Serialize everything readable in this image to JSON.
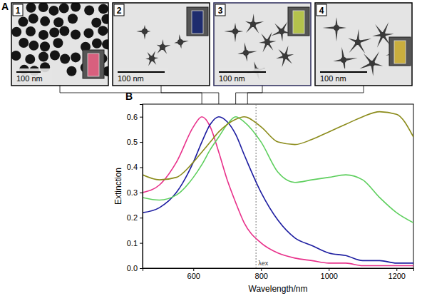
{
  "panel_a": {
    "label": "A",
    "panels": [
      {
        "number": "1",
        "scale_bar": "100 nm",
        "color": "#d8607e",
        "peak": 625
      },
      {
        "number": "2",
        "scale_bar": "100 nm",
        "color": "#1e2c6e",
        "peak": 675
      },
      {
        "number": "3",
        "scale_bar": "100 nm",
        "color": "#b4c24c",
        "peak": 725
      },
      {
        "number": "4",
        "scale_bar": "100 nm",
        "color": "#c9ae3e",
        "peak": 760
      }
    ]
  },
  "chart_data": {
    "type": "line",
    "panel_label": "B",
    "x_label": "Wavelength/nm",
    "y_label": "Extinction",
    "x": [
      450,
      500,
      550,
      600,
      625,
      650,
      675,
      700,
      725,
      750,
      800,
      850,
      900,
      950,
      1000,
      1050,
      1100,
      1150,
      1200,
      1250
    ],
    "series": [
      {
        "color": "#e8308a",
        "values": [
          0.3,
          0.33,
          0.42,
          0.56,
          0.6,
          0.56,
          0.46,
          0.35,
          0.26,
          0.18,
          0.1,
          0.06,
          0.04,
          0.03,
          0.02,
          0.02,
          0.01,
          0.01,
          0.01,
          0.01
        ]
      },
      {
        "color": "#1c1ca0",
        "values": [
          0.22,
          0.24,
          0.3,
          0.42,
          0.5,
          0.57,
          0.6,
          0.58,
          0.53,
          0.45,
          0.3,
          0.19,
          0.12,
          0.09,
          0.06,
          0.05,
          0.03,
          0.03,
          0.02,
          0.02
        ]
      },
      {
        "color": "#5ecf5e",
        "values": [
          0.28,
          0.27,
          0.29,
          0.36,
          0.41,
          0.47,
          0.52,
          0.57,
          0.6,
          0.58,
          0.5,
          0.38,
          0.34,
          0.35,
          0.36,
          0.37,
          0.35,
          0.28,
          0.22,
          0.18
        ]
      },
      {
        "color": "#8b8b1a",
        "values": [
          0.37,
          0.35,
          0.36,
          0.42,
          0.46,
          0.5,
          0.54,
          0.57,
          0.59,
          0.6,
          0.56,
          0.5,
          0.49,
          0.51,
          0.54,
          0.57,
          0.6,
          0.62,
          0.61,
          0.52
        ]
      }
    ],
    "xlim": [
      450,
      1250
    ],
    "xticks": [
      600,
      800,
      1000,
      1200
    ],
    "ylim": [
      0,
      0.65
    ],
    "yticks": [
      {
        "value": 0,
        "label": "0.0"
      },
      {
        "value": 0.1,
        "label": "0.1"
      },
      {
        "value": 0.2,
        "label": "0.2"
      },
      {
        "value": 0.3,
        "label": "0.3"
      },
      {
        "value": 0.4,
        "label": "0.4"
      },
      {
        "value": 0.5,
        "label": "0.5"
      },
      {
        "value": 0.6,
        "label": "0.6"
      }
    ],
    "annotations": [
      {
        "text": "λex",
        "x": 785
      }
    ]
  }
}
